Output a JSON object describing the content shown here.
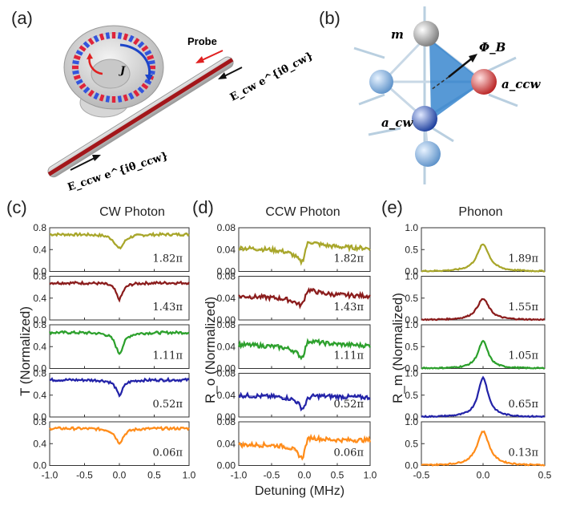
{
  "panel_labels": [
    "(a)",
    "(b)",
    "(c)",
    "(d)",
    "(e)"
  ],
  "schematic_a": {
    "probe_label": "Probe",
    "j_label": "J",
    "e_cw_label": "E_cw e^{iθ_cw}",
    "e_ccw_label": "E_ccw e^{iθ_ccw}"
  },
  "schematic_b": {
    "m_label": "m",
    "phi_label": "Φ_B",
    "a_cw_label": "a_cw",
    "a_ccw_label": "a_ccw"
  },
  "column_titles": {
    "c": "CW Photon",
    "d": "CCW Photon",
    "e": "Phonon"
  },
  "axis_labels": {
    "c_ylabel": "T (Normalized)",
    "d_ylabel": "R_o (Normalized)",
    "e_ylabel": "R_m (Normalized)",
    "d_xlabel": "Detuning (MHz)"
  },
  "phase_labels": [
    "1.82π",
    "1.43π",
    "1.11π",
    "0.52π",
    "0.06π"
  ],
  "phase_labels_e": [
    "1.89π",
    "1.55π",
    "1.05π",
    "0.65π",
    "0.13π"
  ],
  "series_colors": [
    "#a8a62a",
    "#8b1c1c",
    "#2ca02c",
    "#2323a8",
    "#ff8c1a"
  ],
  "chart_data": [
    {
      "type": "line",
      "panel": "(c)",
      "title": "CW Photon",
      "ylabel": "T (Normalized)",
      "xlim": [
        -1.0,
        1.0
      ],
      "ylim": [
        0.0,
        0.8
      ],
      "xticks": [
        -1.0,
        -0.5,
        0.0,
        0.5,
        1.0
      ],
      "yticks": [
        0.0,
        0.4,
        0.8
      ],
      "series": [
        {
          "name": "1.82π",
          "baseline": 0.68,
          "dip_depth": 0.26,
          "dip_width": 0.08,
          "center": 0.0
        },
        {
          "name": "1.43π",
          "baseline": 0.68,
          "dip_depth": 0.3,
          "dip_width": 0.06,
          "center": 0.0
        },
        {
          "name": "1.11π",
          "baseline": 0.66,
          "dip_depth": 0.38,
          "dip_width": 0.07,
          "center": 0.0
        },
        {
          "name": "0.52π",
          "baseline": 0.68,
          "dip_depth": 0.28,
          "dip_width": 0.06,
          "center": 0.0
        },
        {
          "name": "0.06π",
          "baseline": 0.68,
          "dip_depth": 0.26,
          "dip_width": 0.07,
          "center": 0.0
        }
      ]
    },
    {
      "type": "line",
      "panel": "(d)",
      "title": "CCW Photon",
      "ylabel": "R_o (Normalized)",
      "xlabel": "Detuning (MHz)",
      "xlim": [
        -1.0,
        1.0
      ],
      "ylim": [
        0.0,
        0.08
      ],
      "xticks": [
        -1.0,
        -0.5,
        0.0,
        0.5,
        1.0
      ],
      "yticks": [
        0.0,
        0.04,
        0.08
      ],
      "series": [
        {
          "name": "1.82π",
          "y_left": 0.045,
          "y_right": 0.04,
          "dip": 0.02,
          "peak": 0.068
        },
        {
          "name": "1.43π",
          "y_left": 0.045,
          "y_right": 0.042,
          "dip": 0.035,
          "peak": 0.065
        },
        {
          "name": "1.11π",
          "y_left": 0.045,
          "y_right": 0.04,
          "dip": 0.02,
          "peak": 0.062
        },
        {
          "name": "0.52π",
          "y_left": 0.04,
          "y_right": 0.035,
          "dip": 0.003,
          "peak": 0.045
        },
        {
          "name": "0.06π",
          "y_left": 0.04,
          "y_right": 0.045,
          "dip": 0.01,
          "peak": 0.065
        }
      ]
    },
    {
      "type": "line",
      "panel": "(e)",
      "title": "Phonon",
      "ylabel": "R_m (Normalized)",
      "xlim": [
        -0.5,
        0.5
      ],
      "ylim": [
        0.0,
        1.0
      ],
      "xticks": [
        -0.5,
        0.0,
        0.5
      ],
      "yticks": [
        0.0,
        0.5,
        1.0
      ],
      "series": [
        {
          "name": "1.89π",
          "peak": 0.62,
          "width": 0.06,
          "center": 0.0
        },
        {
          "name": "1.55π",
          "peak": 0.48,
          "width": 0.06,
          "center": 0.0
        },
        {
          "name": "1.05π",
          "peak": 0.62,
          "width": 0.05,
          "center": 0.0
        },
        {
          "name": "0.65π",
          "peak": 0.9,
          "width": 0.05,
          "center": 0.0
        },
        {
          "name": "0.13π",
          "peak": 0.78,
          "width": 0.06,
          "center": 0.0
        }
      ]
    }
  ]
}
